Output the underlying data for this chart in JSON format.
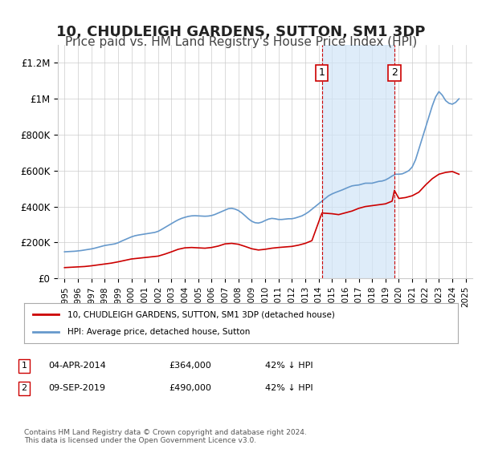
{
  "title": "10, CHUDLEIGH GARDENS, SUTTON, SM1 3DP",
  "subtitle": "Price paid vs. HM Land Registry's House Price Index (HPI)",
  "title_fontsize": 13,
  "subtitle_fontsize": 11,
  "background_color": "#ffffff",
  "plot_bg_color": "#ffffff",
  "grid_color": "#cccccc",
  "red_line_color": "#cc0000",
  "blue_line_color": "#6699cc",
  "vline_color": "#cc0000",
  "shade_color": "#d0e4f7",
  "marker1_year": 2014.25,
  "marker2_year": 2019.67,
  "xlabel": "",
  "ylabel": "",
  "ylim": [
    0,
    1300000
  ],
  "xlim_start": 1994.5,
  "xlim_end": 2025.5,
  "ytick_labels": [
    "£0",
    "£200K",
    "£400K",
    "£600K",
    "£800K",
    "£1M",
    "£1.2M"
  ],
  "ytick_values": [
    0,
    200000,
    400000,
    600000,
    800000,
    1000000,
    1200000
  ],
  "xtick_years": [
    1995,
    1996,
    1997,
    1998,
    1999,
    2000,
    2001,
    2002,
    2003,
    2004,
    2005,
    2006,
    2007,
    2008,
    2009,
    2010,
    2011,
    2012,
    2013,
    2014,
    2015,
    2016,
    2017,
    2018,
    2019,
    2020,
    2021,
    2022,
    2023,
    2024,
    2025
  ],
  "legend_red_label": "10, CHUDLEIGH GARDENS, SUTTON, SM1 3DP (detached house)",
  "legend_blue_label": "HPI: Average price, detached house, Sutton",
  "table_row1": [
    "1",
    "04-APR-2014",
    "£364,000",
    "42% ↓ HPI"
  ],
  "table_row2": [
    "2",
    "09-SEP-2019",
    "£490,000",
    "42% ↓ HPI"
  ],
  "footnote": "Contains HM Land Registry data © Crown copyright and database right 2024.\nThis data is licensed under the Open Government Licence v3.0.",
  "hpi_years": [
    1995.0,
    1995.25,
    1995.5,
    1995.75,
    1996.0,
    1996.25,
    1996.5,
    1996.75,
    1997.0,
    1997.25,
    1997.5,
    1997.75,
    1998.0,
    1998.25,
    1998.5,
    1998.75,
    1999.0,
    1999.25,
    1999.5,
    1999.75,
    2000.0,
    2000.25,
    2000.5,
    2000.75,
    2001.0,
    2001.25,
    2001.5,
    2001.75,
    2002.0,
    2002.25,
    2002.5,
    2002.75,
    2003.0,
    2003.25,
    2003.5,
    2003.75,
    2004.0,
    2004.25,
    2004.5,
    2004.75,
    2005.0,
    2005.25,
    2005.5,
    2005.75,
    2006.0,
    2006.25,
    2006.5,
    2006.75,
    2007.0,
    2007.25,
    2007.5,
    2007.75,
    2008.0,
    2008.25,
    2008.5,
    2008.75,
    2009.0,
    2009.25,
    2009.5,
    2009.75,
    2010.0,
    2010.25,
    2010.5,
    2010.75,
    2011.0,
    2011.25,
    2011.5,
    2011.75,
    2012.0,
    2012.25,
    2012.5,
    2012.75,
    2013.0,
    2013.25,
    2013.5,
    2013.75,
    2014.0,
    2014.25,
    2014.5,
    2014.75,
    2015.0,
    2015.25,
    2015.5,
    2015.75,
    2016.0,
    2016.25,
    2016.5,
    2016.75,
    2017.0,
    2017.25,
    2017.5,
    2017.75,
    2018.0,
    2018.25,
    2018.5,
    2018.75,
    2019.0,
    2019.25,
    2019.5,
    2019.75,
    2020.0,
    2020.25,
    2020.5,
    2020.75,
    2021.0,
    2021.25,
    2021.5,
    2021.75,
    2022.0,
    2022.25,
    2022.5,
    2022.75,
    2023.0,
    2023.25,
    2023.5,
    2023.75,
    2024.0,
    2024.25,
    2024.5
  ],
  "hpi_values": [
    148000,
    149000,
    150000,
    151000,
    153000,
    155000,
    158000,
    161000,
    164000,
    168000,
    173000,
    178000,
    183000,
    186000,
    189000,
    192000,
    198000,
    207000,
    215000,
    223000,
    231000,
    237000,
    241000,
    244000,
    247000,
    250000,
    253000,
    256000,
    262000,
    272000,
    283000,
    294000,
    305000,
    316000,
    326000,
    334000,
    340000,
    345000,
    348000,
    349000,
    348000,
    347000,
    346000,
    347000,
    350000,
    356000,
    364000,
    372000,
    380000,
    388000,
    390000,
    386000,
    378000,
    365000,
    349000,
    332000,
    318000,
    310000,
    308000,
    313000,
    322000,
    330000,
    334000,
    332000,
    328000,
    328000,
    330000,
    332000,
    332000,
    336000,
    342000,
    348000,
    358000,
    370000,
    385000,
    400000,
    415000,
    430000,
    445000,
    460000,
    470000,
    478000,
    485000,
    492000,
    500000,
    508000,
    515000,
    518000,
    520000,
    525000,
    530000,
    530000,
    530000,
    535000,
    540000,
    542000,
    548000,
    558000,
    570000,
    580000,
    580000,
    582000,
    590000,
    600000,
    620000,
    660000,
    720000,
    780000,
    840000,
    900000,
    960000,
    1010000,
    1040000,
    1020000,
    990000,
    975000,
    970000,
    980000,
    1000000
  ],
  "red_years": [
    1995.0,
    1995.5,
    1996.0,
    1996.5,
    1997.0,
    1997.5,
    1998.0,
    1998.5,
    1999.0,
    1999.5,
    2000.0,
    2000.5,
    2001.0,
    2001.5,
    2002.0,
    2002.5,
    2003.0,
    2003.5,
    2004.0,
    2004.5,
    2005.0,
    2005.5,
    2006.0,
    2006.5,
    2007.0,
    2007.5,
    2008.0,
    2008.5,
    2009.0,
    2009.5,
    2010.0,
    2010.5,
    2011.0,
    2011.5,
    2012.0,
    2012.5,
    2013.0,
    2013.5,
    2014.25,
    2015.0,
    2015.5,
    2016.0,
    2016.5,
    2017.0,
    2017.5,
    2018.0,
    2018.5,
    2019.0,
    2019.5,
    2019.67,
    2020.0,
    2020.5,
    2021.0,
    2021.5,
    2022.0,
    2022.5,
    2023.0,
    2023.5,
    2024.0,
    2024.5
  ],
  "red_values": [
    60000,
    62000,
    64000,
    66000,
    70000,
    75000,
    80000,
    85000,
    92000,
    100000,
    108000,
    112000,
    116000,
    120000,
    124000,
    135000,
    148000,
    162000,
    170000,
    172000,
    170000,
    168000,
    172000,
    180000,
    192000,
    195000,
    190000,
    178000,
    165000,
    158000,
    162000,
    168000,
    172000,
    175000,
    178000,
    185000,
    195000,
    210000,
    364000,
    360000,
    355000,
    365000,
    375000,
    390000,
    400000,
    405000,
    410000,
    415000,
    430000,
    490000,
    445000,
    450000,
    460000,
    480000,
    520000,
    555000,
    580000,
    590000,
    595000,
    580000
  ]
}
